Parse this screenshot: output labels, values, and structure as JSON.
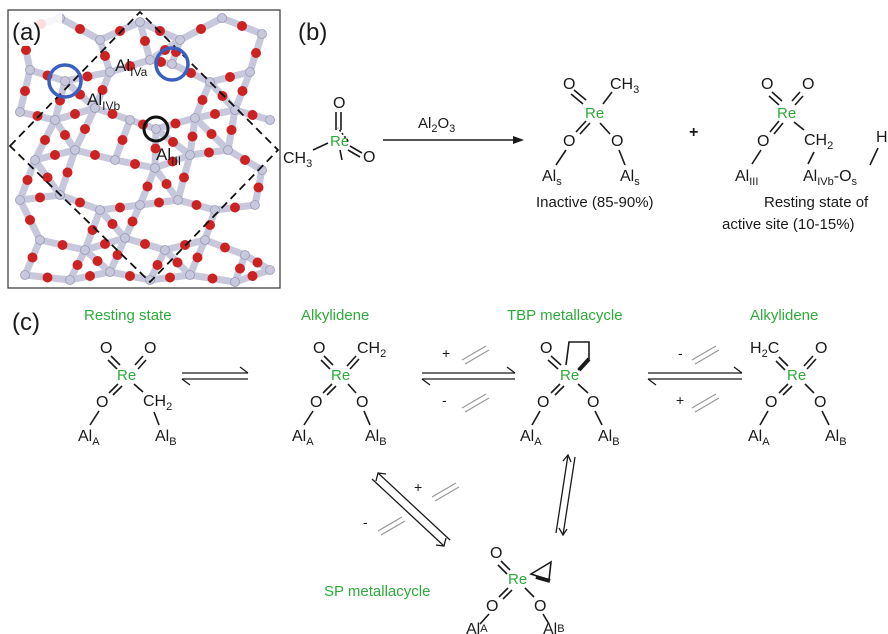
{
  "panels": {
    "a": "(a)",
    "b": "(b)",
    "c": "(c)"
  },
  "colors": {
    "oxygen": "#cc2222",
    "aluminum": "#c8c8dc",
    "highlight_blue": "#3a5fbf",
    "highlight_black": "#111111",
    "label_green": "#2eaa3a"
  },
  "panel_a": {
    "site_iva": {
      "main": "Al",
      "sub": "IVa"
    },
    "site_ivb": {
      "main": "Al",
      "sub": "IVb"
    },
    "site_iii": {
      "main": "Al",
      "sub": "III"
    }
  },
  "panel_b": {
    "reagent": "Al",
    "reagent_sub": "2",
    "reagent_rest": "O",
    "reagent_sub2": "3",
    "plus": "+",
    "inactive_label": "Inactive (85-90%)",
    "resting_label_1": "Resting state of",
    "resting_label_2": "active site (10-15%)"
  },
  "atoms": {
    "re": "Re",
    "o": "O",
    "al": "Al",
    "h": "H",
    "ch3": "CH",
    "ch2": "CH",
    "h2c": "H",
    "c": "C",
    "two": "2",
    "three": "3",
    "s": "s",
    "a": "A",
    "b": "B",
    "iii": "III",
    "ivb": "IVb",
    "dash": "-"
  },
  "panel_c": {
    "resting_state": "Resting state",
    "alkylidene_1": "Alkylidene",
    "tbp": "TBP metallacycle",
    "alkylidene_2": "Alkylidene",
    "sp": "SP metallacycle",
    "plus": "+",
    "minus": "-"
  }
}
